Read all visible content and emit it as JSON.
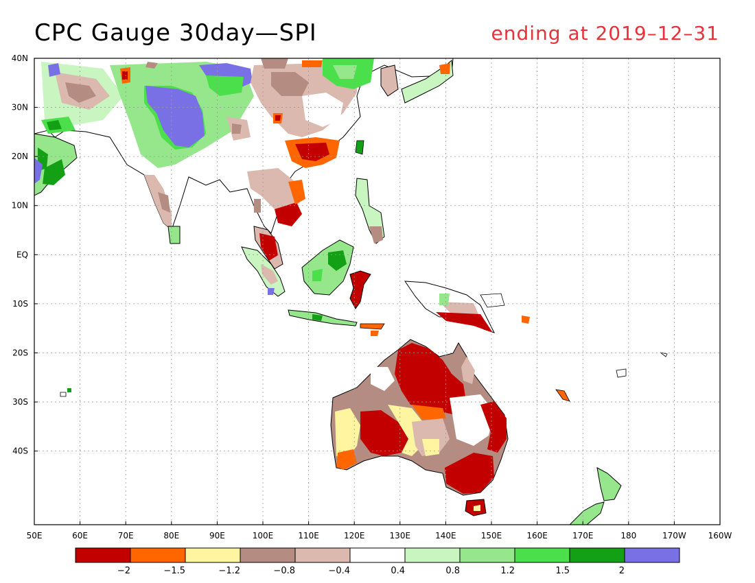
{
  "title": "CPC Gauge 30day—SPI",
  "subtitle": "ending at 2019–12–31",
  "map": {
    "lat_ticks": [
      "40N",
      "30N",
      "20N",
      "10N",
      "EQ",
      "10S",
      "20S",
      "30S",
      "40S"
    ],
    "lon_ticks": [
      "50E",
      "60E",
      "70E",
      "80E",
      "90E",
      "100E",
      "110E",
      "120E",
      "130E",
      "140E",
      "150E",
      "160E",
      "170E",
      "180",
      "170W",
      "160W"
    ]
  },
  "colorbar": {
    "colors": [
      "#c30000",
      "#ff6600",
      "#fff5a0",
      "#b48c82",
      "#dcb9ae",
      "#ffffff",
      "#c8f5c0",
      "#96e68c",
      "#4be04b",
      "#14a014",
      "#7a70e6"
    ],
    "labels": [
      "−2",
      "−1.5",
      "−1.2",
      "−0.8",
      "−0.4",
      "0.4",
      "0.8",
      "1.2",
      "1.5",
      "2"
    ]
  }
}
